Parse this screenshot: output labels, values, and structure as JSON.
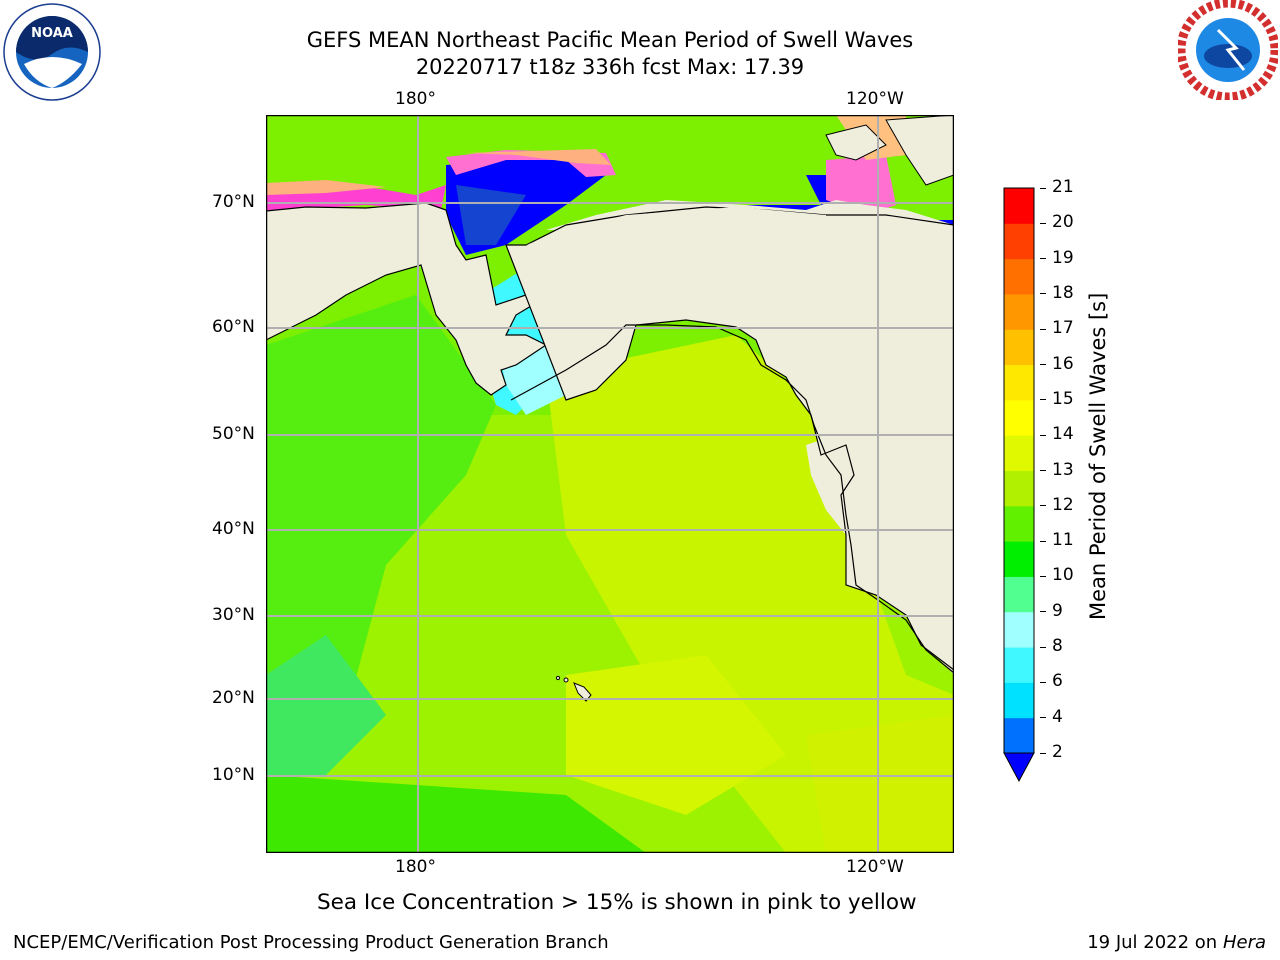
{
  "title": {
    "line1": "GEFS MEAN Northeast Pacific Mean Period of Swell Waves",
    "line2": "20220717 t18z 336h fcst   Max: 17.39"
  },
  "logos": {
    "left": "NOAA",
    "right": "NATIONAL WEATHER SERVICE"
  },
  "map": {
    "lon_labels": [
      "180°",
      "120°W"
    ],
    "lat_labels": [
      "70°N",
      "60°N",
      "50°N",
      "40°N",
      "30°N",
      "20°N",
      "10°N"
    ],
    "grid": true
  },
  "colorbar": {
    "label": "Mean Period of Swell Waves [s]",
    "ticks": [
      "2",
      "4",
      "6",
      "8",
      "9",
      "10",
      "11",
      "12",
      "13",
      "14",
      "15",
      "16",
      "17",
      "18",
      "19",
      "20",
      "21"
    ],
    "levels": [
      2,
      4,
      6,
      8,
      9,
      10,
      11,
      12,
      13,
      14,
      15,
      16,
      17,
      18,
      19,
      20,
      21
    ],
    "colors": [
      "#0070ff",
      "#00e0ff",
      "#40f8ff",
      "#a0ffff",
      "#50ff90",
      "#00ee00",
      "#60f000",
      "#b0f000",
      "#e0f800",
      "#ffff00",
      "#ffe800",
      "#ffc000",
      "#ff9800",
      "#ff7000",
      "#ff4000",
      "#ff0000"
    ],
    "extend_color": "#0000ff"
  },
  "note": "Sea Ice Concentration > 15% is shown in pink to yellow",
  "footer": {
    "left": "NCEP/EMC/Verification Post Processing Product Generation Branch",
    "date": "19 Jul 2022 on ",
    "host": "Hera"
  }
}
